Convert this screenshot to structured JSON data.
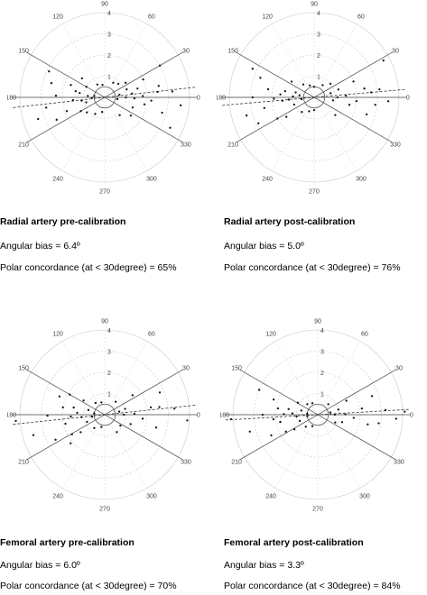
{
  "chart_data": [
    {
      "type": "scatter",
      "subtype": "polar",
      "title": "Radial artery pre-calibration",
      "angular_bias_text": "Angular bias = 6.4º",
      "polar_concordance_text": "Polar concordance (at < 30degree) =  65%",
      "radial_ticks": [
        "1",
        "2",
        "3",
        "4"
      ],
      "angle_ticks": [
        "90",
        "60",
        "30",
        "0",
        "330",
        "300",
        "270",
        "240",
        "210",
        "180",
        "150",
        "120"
      ],
      "rlim": [
        0,
        4
      ],
      "bias_deg": 6.4,
      "limit_lines_deg": [
        30,
        -30
      ],
      "points": [
        {
          "angle": 2,
          "r": 1.8
        },
        {
          "angle": -4,
          "r": 2.2
        },
        {
          "angle": 8,
          "r": 1.3
        },
        {
          "angle": 12,
          "r": 2.6
        },
        {
          "angle": 15,
          "r": 1.6
        },
        {
          "angle": -10,
          "r": 1.9
        },
        {
          "angle": -15,
          "r": 2.8
        },
        {
          "angle": 20,
          "r": 1.1
        },
        {
          "angle": 25,
          "r": 2.0
        },
        {
          "angle": -20,
          "r": 1.4
        },
        {
          "angle": 5,
          "r": 3.2
        },
        {
          "angle": -6,
          "r": 3.6
        },
        {
          "angle": 35,
          "r": 1.2
        },
        {
          "angle": -35,
          "r": 1.5
        },
        {
          "angle": 45,
          "r": 0.9
        },
        {
          "angle": 60,
          "r": 0.8
        },
        {
          "angle": -50,
          "r": 1.1
        },
        {
          "angle": 0,
          "r": 1.0
        },
        {
          "angle": 10,
          "r": 0.7
        },
        {
          "angle": -8,
          "r": 0.6
        },
        {
          "angle": 170,
          "r": 1.2
        },
        {
          "angle": 175,
          "r": 0.8
        },
        {
          "angle": 185,
          "r": 1.5
        },
        {
          "angle": 160,
          "r": 1.7
        },
        {
          "angle": 195,
          "r": 0.9
        },
        {
          "angle": 200,
          "r": 1.9
        },
        {
          "angle": 150,
          "r": 1.0
        },
        {
          "angle": 210,
          "r": 1.3
        },
        {
          "angle": 178,
          "r": 2.3
        },
        {
          "angle": 190,
          "r": 2.8
        },
        {
          "angle": 165,
          "r": 2.6
        },
        {
          "angle": 205,
          "r": 2.5
        },
        {
          "angle": 140,
          "r": 1.4
        },
        {
          "angle": 220,
          "r": 1.1
        },
        {
          "angle": 182,
          "r": 0.6
        },
        {
          "angle": 172,
          "r": 0.5
        },
        {
          "angle": 120,
          "r": 0.7
        },
        {
          "angle": 240,
          "r": 0.9
        },
        {
          "angle": 100,
          "r": 0.6
        },
        {
          "angle": 260,
          "r": 0.7
        },
        {
          "angle": 155,
          "r": 2.9
        },
        {
          "angle": 198,
          "r": 3.3
        },
        {
          "angle": 30,
          "r": 3.0
        },
        {
          "angle": -25,
          "r": 3.4
        },
        {
          "angle": 188,
          "r": 1.1
        },
        {
          "angle": 168,
          "r": 1.4
        },
        {
          "angle": 6,
          "r": 2.5
        },
        {
          "angle": -2,
          "r": 1.4
        }
      ]
    },
    {
      "type": "scatter",
      "subtype": "polar",
      "title": "Radial artery post-calibration",
      "angular_bias_text": "Angular bias = 5.0º",
      "polar_concordance_text": "Polar concordance (at < 30degree) =  76%",
      "radial_ticks": [
        "1",
        "2",
        "3",
        "4"
      ],
      "angle_ticks": [
        "90",
        "60",
        "30",
        "0",
        "330",
        "300",
        "270",
        "240",
        "210",
        "180",
        "150",
        "120"
      ],
      "rlim": [
        0,
        4
      ],
      "bias_deg": 5.0,
      "limit_lines_deg": [
        30,
        -30
      ],
      "points": [
        {
          "angle": 3,
          "r": 1.5
        },
        {
          "angle": -5,
          "r": 2.0
        },
        {
          "angle": 10,
          "r": 2.4
        },
        {
          "angle": -12,
          "r": 1.7
        },
        {
          "angle": 18,
          "r": 1.2
        },
        {
          "angle": -18,
          "r": 2.6
        },
        {
          "angle": 7,
          "r": 3.1
        },
        {
          "angle": -3,
          "r": 3.5
        },
        {
          "angle": 22,
          "r": 2.0
        },
        {
          "angle": 0,
          "r": 1.1
        },
        {
          "angle": 14,
          "r": 0.8
        },
        {
          "angle": -9,
          "r": 0.9
        },
        {
          "angle": 40,
          "r": 1.0
        },
        {
          "angle": -40,
          "r": 1.3
        },
        {
          "angle": 55,
          "r": 0.7
        },
        {
          "angle": 28,
          "r": 3.7
        },
        {
          "angle": 175,
          "r": 1.6
        },
        {
          "angle": 185,
          "r": 1.2
        },
        {
          "angle": 170,
          "r": 2.2
        },
        {
          "angle": 192,
          "r": 2.4
        },
        {
          "angle": 165,
          "r": 0.9
        },
        {
          "angle": 200,
          "r": 1.0
        },
        {
          "angle": 180,
          "r": 2.9
        },
        {
          "angle": 160,
          "r": 2.7
        },
        {
          "angle": 205,
          "r": 2.9
        },
        {
          "angle": 145,
          "r": 1.3
        },
        {
          "angle": 215,
          "r": 1.6
        },
        {
          "angle": 188,
          "r": 0.6
        },
        {
          "angle": 172,
          "r": 0.7
        },
        {
          "angle": 130,
          "r": 0.8
        },
        {
          "angle": 230,
          "r": 0.9
        },
        {
          "angle": 195,
          "r": 3.3
        },
        {
          "angle": 155,
          "r": 3.2
        },
        {
          "angle": 182,
          "r": 1.9
        },
        {
          "angle": 168,
          "r": 1.4
        },
        {
          "angle": 210,
          "r": 2.0
        },
        {
          "angle": 110,
          "r": 0.6
        },
        {
          "angle": 250,
          "r": 0.7
        },
        {
          "angle": 90,
          "r": 0.5
        },
        {
          "angle": 270,
          "r": 0.6
        },
        {
          "angle": 5,
          "r": 2.7
        },
        {
          "angle": -7,
          "r": 2.9
        },
        {
          "angle": 186,
          "r": 1.5
        },
        {
          "angle": 178,
          "r": 1.0
        }
      ]
    },
    {
      "type": "scatter",
      "subtype": "polar",
      "title": "Femoral artery pre-calibration",
      "angular_bias_text": "Angular bias = 6.0º",
      "polar_concordance_text": "Polar concordance (at < 30degree) = 70%",
      "radial_ticks": [
        "1",
        "2",
        "3",
        "4"
      ],
      "angle_ticks": [
        "90",
        "60",
        "30",
        "0",
        "330",
        "300",
        "270",
        "240",
        "210",
        "180",
        "150",
        "120"
      ],
      "rlim": [
        0,
        4
      ],
      "bias_deg": 6.0,
      "limit_lines_deg": [
        30,
        -30
      ],
      "points": [
        {
          "angle": 2,
          "r": 1.4
        },
        {
          "angle": -6,
          "r": 1.8
        },
        {
          "angle": 9,
          "r": 2.2
        },
        {
          "angle": -14,
          "r": 2.5
        },
        {
          "angle": 16,
          "r": 1.0
        },
        {
          "angle": 22,
          "r": 2.8
        },
        {
          "angle": -20,
          "r": 1.3
        },
        {
          "angle": 5,
          "r": 3.3
        },
        {
          "angle": 0,
          "r": 0.9
        },
        {
          "angle": 12,
          "r": 0.7
        },
        {
          "angle": -4,
          "r": 3.9
        },
        {
          "angle": 35,
          "r": 1.6
        },
        {
          "angle": -35,
          "r": 0.9
        },
        {
          "angle": 50,
          "r": 0.8
        },
        {
          "angle": -55,
          "r": 1.0
        },
        {
          "angle": 8,
          "r": 2.6
        },
        {
          "angle": 176,
          "r": 1.3
        },
        {
          "angle": 186,
          "r": 1.1
        },
        {
          "angle": 170,
          "r": 2.0
        },
        {
          "angle": 193,
          "r": 1.9
        },
        {
          "angle": 164,
          "r": 0.8
        },
        {
          "angle": 202,
          "r": 0.9
        },
        {
          "angle": 181,
          "r": 2.7
        },
        {
          "angle": 158,
          "r": 2.3
        },
        {
          "angle": 207,
          "r": 2.6
        },
        {
          "angle": 146,
          "r": 1.2
        },
        {
          "angle": 216,
          "r": 1.4
        },
        {
          "angle": 189,
          "r": 0.6
        },
        {
          "angle": 173,
          "r": 0.5
        },
        {
          "angle": 128,
          "r": 0.7
        },
        {
          "angle": 232,
          "r": 0.8
        },
        {
          "angle": 196,
          "r": 3.5
        },
        {
          "angle": 184,
          "r": 4.2
        },
        {
          "angle": 183,
          "r": 1.6
        },
        {
          "angle": 167,
          "r": 1.5
        },
        {
          "angle": 211,
          "r": 1.8
        },
        {
          "angle": 105,
          "r": 0.6
        },
        {
          "angle": 255,
          "r": 0.6
        },
        {
          "angle": 150,
          "r": 1.9
        },
        {
          "angle": 220,
          "r": 2.1
        }
      ]
    },
    {
      "type": "scatter",
      "subtype": "polar",
      "title": "Femoral artery post-calibration",
      "angular_bias_text": "Angular bias = 3.3º",
      "polar_concordance_text": "Polar concordance (at < 30degree) = 84%",
      "radial_ticks": [
        "1",
        "2",
        "3",
        "4"
      ],
      "angle_ticks": [
        "90",
        "60",
        "30",
        "0",
        "330",
        "300",
        "270",
        "240",
        "210",
        "180",
        "150",
        "120"
      ],
      "rlim": [
        0,
        4
      ],
      "bias_deg": 3.3,
      "limit_lines_deg": [
        30,
        -30
      ],
      "points": [
        {
          "angle": 1,
          "r": 1.3
        },
        {
          "angle": -5,
          "r": 1.7
        },
        {
          "angle": 8,
          "r": 2.1
        },
        {
          "angle": -11,
          "r": 2.4
        },
        {
          "angle": 14,
          "r": 1.0
        },
        {
          "angle": 19,
          "r": 2.7
        },
        {
          "angle": -17,
          "r": 1.2
        },
        {
          "angle": 4,
          "r": 3.2
        },
        {
          "angle": 0,
          "r": 0.8
        },
        {
          "angle": 10,
          "r": 0.6
        },
        {
          "angle": -3,
          "r": 3.7
        },
        {
          "angle": 26,
          "r": 1.5
        },
        {
          "angle": -24,
          "r": 0.9
        },
        {
          "angle": 45,
          "r": 0.7
        },
        {
          "angle": 2,
          "r": 4.1
        },
        {
          "angle": -8,
          "r": 2.9
        },
        {
          "angle": 177,
          "r": 1.2
        },
        {
          "angle": 185,
          "r": 1.0
        },
        {
          "angle": 171,
          "r": 1.9
        },
        {
          "angle": 191,
          "r": 1.8
        },
        {
          "angle": 166,
          "r": 0.8
        },
        {
          "angle": 199,
          "r": 0.9
        },
        {
          "angle": 180,
          "r": 2.6
        },
        {
          "angle": 161,
          "r": 2.2
        },
        {
          "angle": 204,
          "r": 2.4
        },
        {
          "angle": 149,
          "r": 1.1
        },
        {
          "angle": 212,
          "r": 1.3
        },
        {
          "angle": 188,
          "r": 0.5
        },
        {
          "angle": 174,
          "r": 0.5
        },
        {
          "angle": 135,
          "r": 0.7
        },
        {
          "angle": 225,
          "r": 0.8
        },
        {
          "angle": 194,
          "r": 3.3
        },
        {
          "angle": 183,
          "r": 4.1
        },
        {
          "angle": 179,
          "r": 1.6
        },
        {
          "angle": 169,
          "r": 1.4
        },
        {
          "angle": 208,
          "r": 1.7
        },
        {
          "angle": 115,
          "r": 0.6
        },
        {
          "angle": 245,
          "r": 0.6
        },
        {
          "angle": 157,
          "r": 3.0
        },
        {
          "angle": 186,
          "r": 2.1
        }
      ]
    }
  ]
}
